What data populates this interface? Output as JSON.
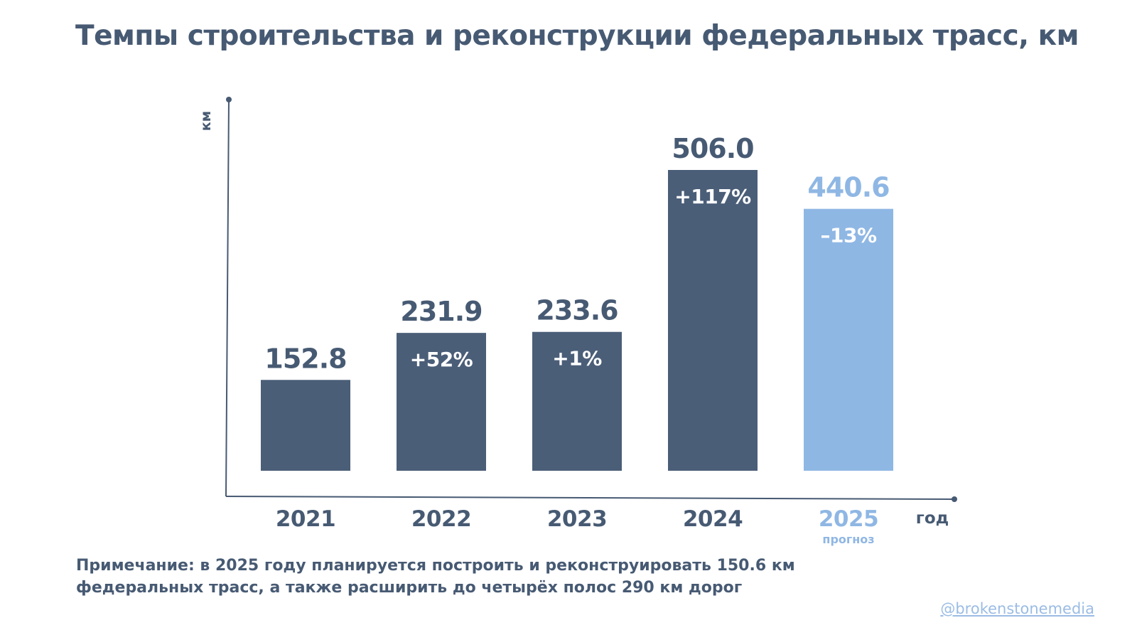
{
  "title": "Темпы строительства и реконструкции федеральных трасс, км",
  "note": {
    "line1": "Примечание: в 2025 году планируется построить и реконструировать 150.6 км",
    "line2": "федеральных трасс, а также расширить до четырёх полос 290 км дорог"
  },
  "handle": "@brokenstonemedia",
  "colors": {
    "bar": "#4b5e78",
    "forecast": "#8fb7e4",
    "text": "#475a73",
    "axis": "#475a73",
    "change_label": "#ffffff"
  },
  "chart_data": {
    "type": "bar",
    "xlabel": "год",
    "ylabel": "км",
    "ylim": [
      0,
      506.0
    ],
    "grid": false,
    "categories": [
      "2021",
      "2022",
      "2023",
      "2024",
      "2025"
    ],
    "category_sublabels": [
      "",
      "",
      "",
      "",
      "прогноз"
    ],
    "values": [
      152.8,
      231.9,
      233.6,
      506.0,
      440.6
    ],
    "value_labels": [
      "152.8",
      "231.9",
      "233.6",
      "506.0",
      "440.6"
    ],
    "changes": [
      "",
      "+52%",
      "+1%",
      "+117%",
      "–13%"
    ],
    "forecast": [
      false,
      false,
      false,
      false,
      true
    ]
  }
}
